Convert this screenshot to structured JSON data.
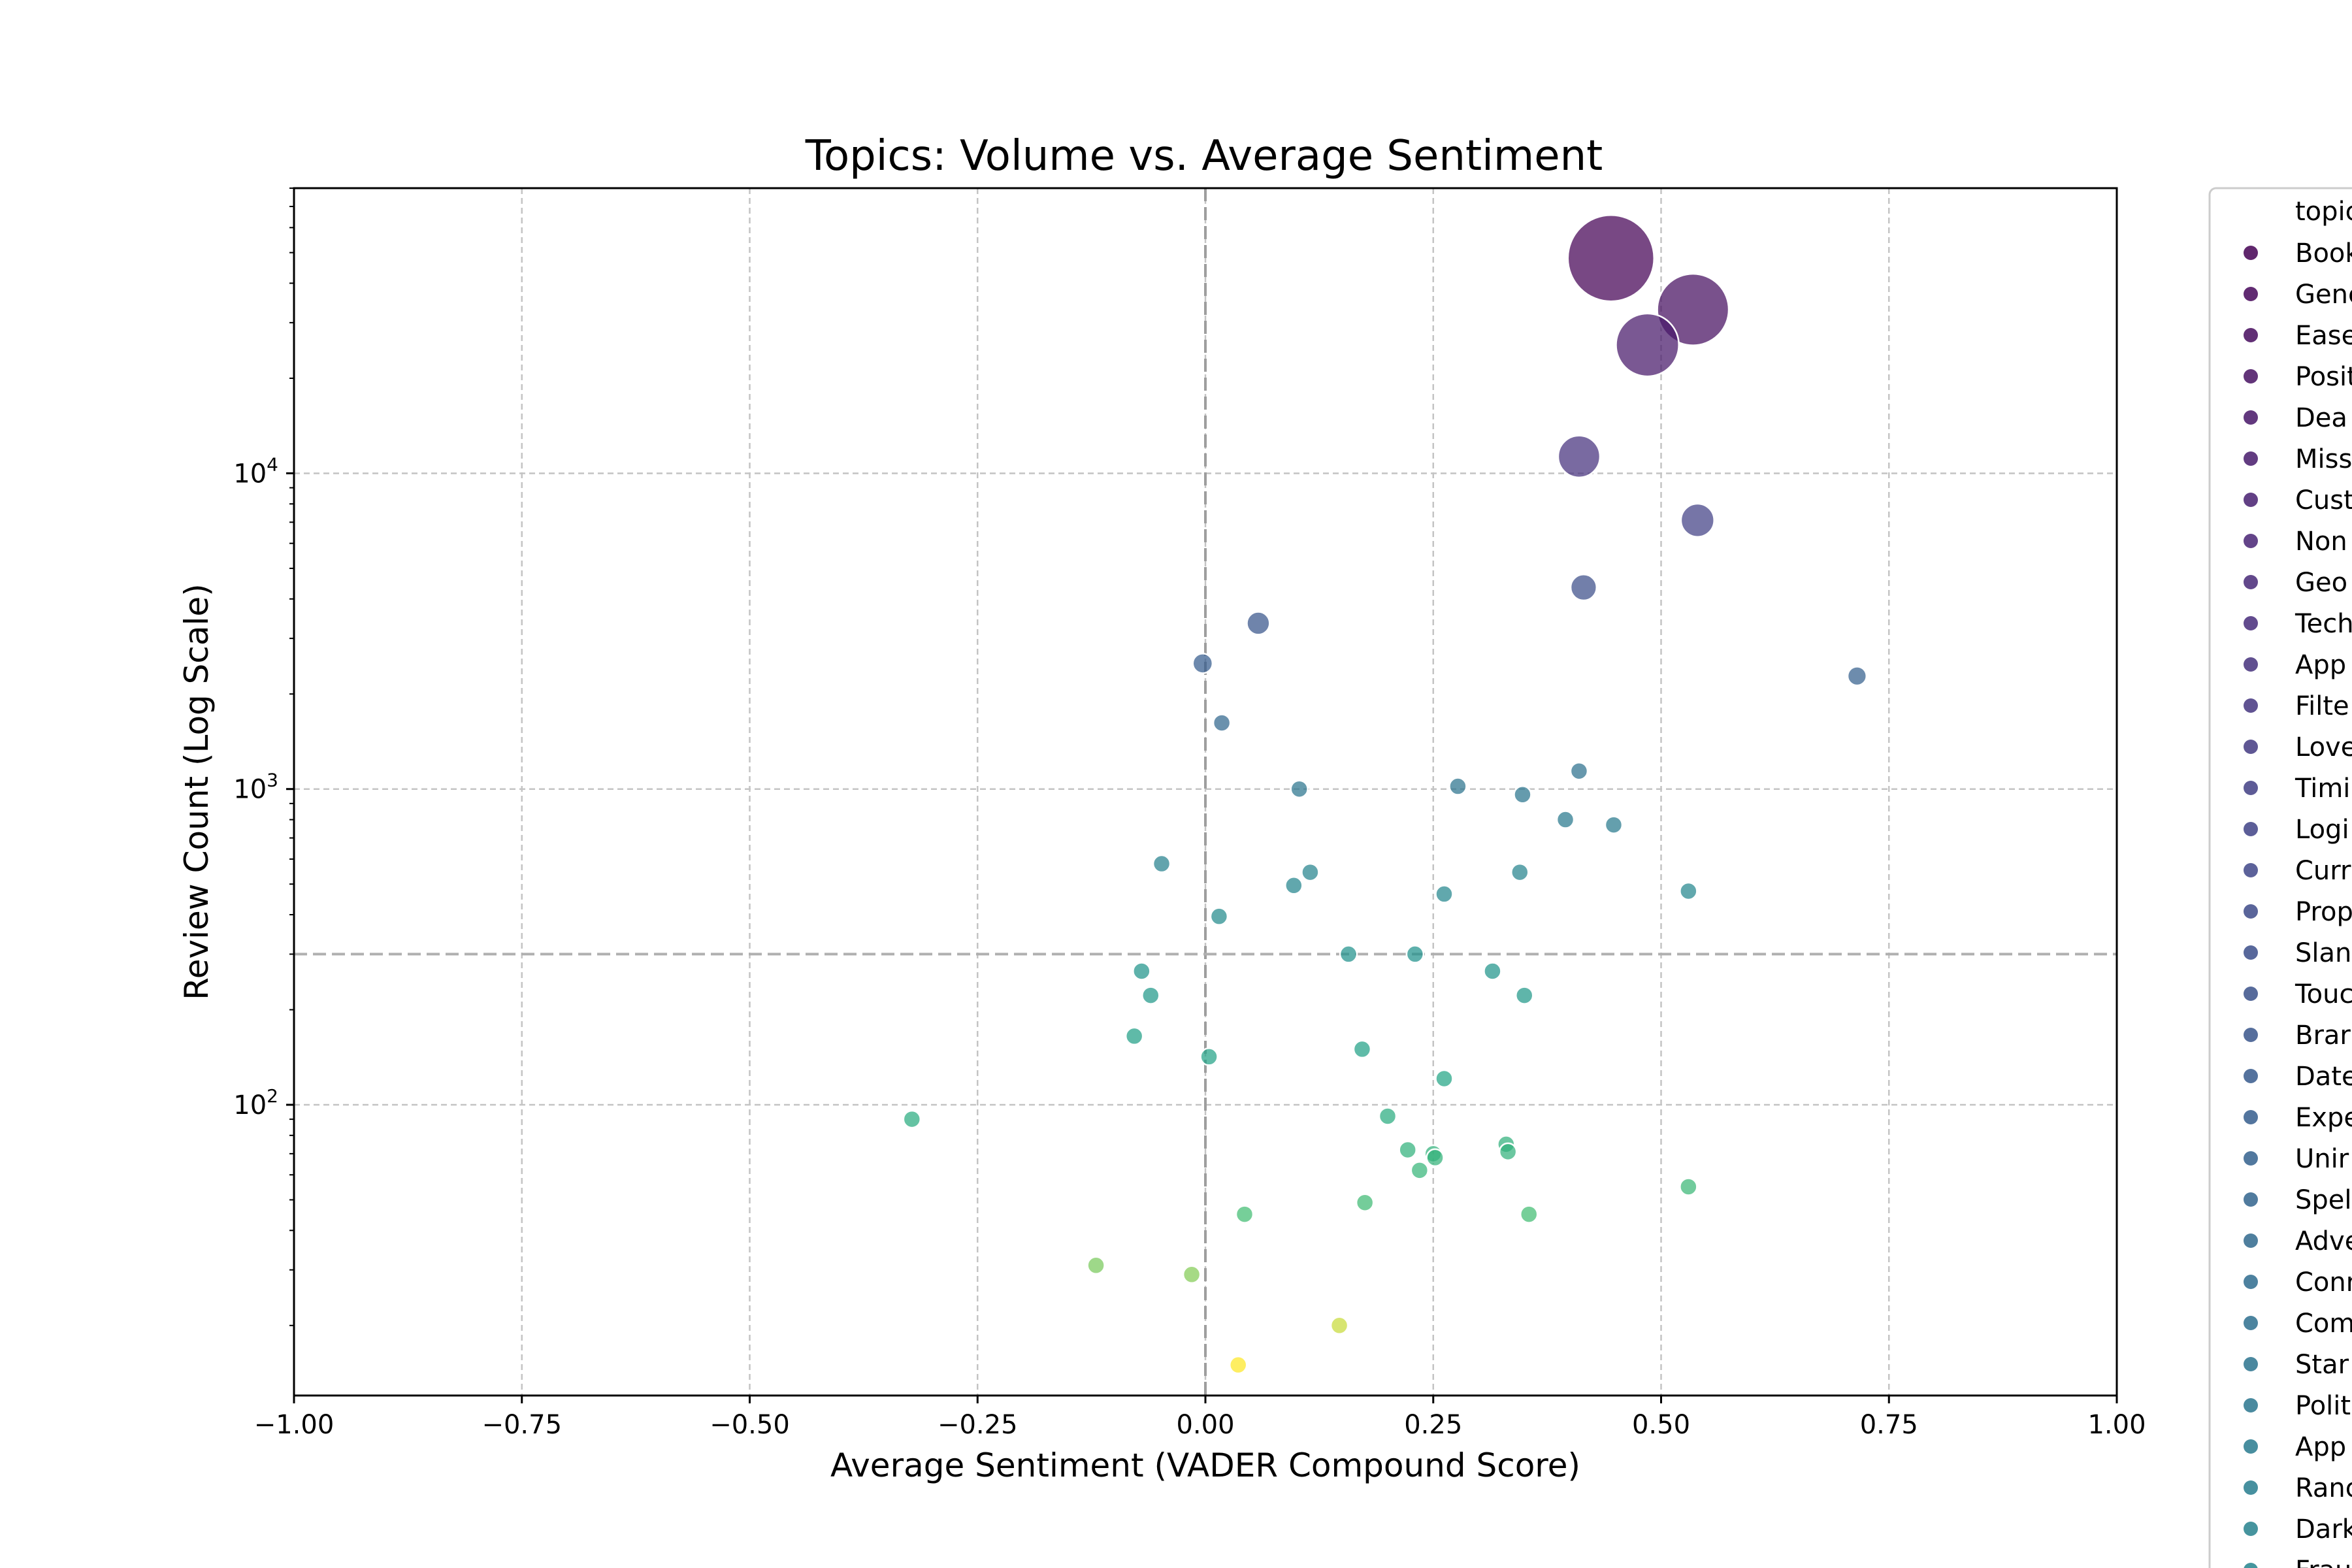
{
  "chart_data": {
    "type": "scatter",
    "title": "Topics: Volume vs. Average Sentiment",
    "xlabel": "Average Sentiment (VADER Compound Score)",
    "ylabel": "Review Count (Log Scale)",
    "xlim": [
      -1.0,
      1.0
    ],
    "ylim": [
      12,
      80000
    ],
    "yscale": "log",
    "grid": true,
    "x_ticks": [
      "−1.00",
      "−0.75",
      "−0.50",
      "−0.25",
      "0.00",
      "0.25",
      "0.50",
      "0.75",
      "1.00"
    ],
    "x_tick_values": [
      -1.0,
      -0.75,
      -0.5,
      -0.25,
      0.0,
      0.25,
      0.5,
      0.75,
      1.0
    ],
    "y_ticks": [
      {
        "base": "10",
        "exp": "2",
        "value": 100
      },
      {
        "base": "10",
        "exp": "3",
        "value": 1000
      },
      {
        "base": "10",
        "exp": "4",
        "value": 10000
      }
    ],
    "reference_lines": {
      "x": 0.0,
      "y": 300
    },
    "color_scale": "viridis",
    "legend": {
      "position": "right",
      "title": "topic",
      "entries": [
        "Book",
        "Gene",
        "Ease",
        "Posit",
        "Dea",
        "Miss",
        "Cust",
        "Non",
        "Geo",
        "Tech",
        "App",
        "Filte",
        "Love",
        "Timi",
        "Logi",
        "Curr",
        "Prop",
        "Slan",
        "Touc",
        "Brar",
        "Date",
        "Expe",
        "Unir",
        "Spel",
        "Adve",
        "Conr",
        "Com",
        "Star",
        "Polit",
        "App",
        "Ranc",
        "Dark",
        "Frau"
      ]
    },
    "points": [
      {
        "x": 0.445,
        "y": 48000
      },
      {
        "x": 0.535,
        "y": 33000
      },
      {
        "x": 0.485,
        "y": 25500
      },
      {
        "x": 0.41,
        "y": 11300
      },
      {
        "x": 0.54,
        "y": 7100
      },
      {
        "x": 0.415,
        "y": 4350
      },
      {
        "x": 0.058,
        "y": 3350
      },
      {
        "x": -0.003,
        "y": 2500
      },
      {
        "x": 0.018,
        "y": 1620
      },
      {
        "x": 0.715,
        "y": 2280
      },
      {
        "x": 0.41,
        "y": 1140
      },
      {
        "x": 0.277,
        "y": 1020
      },
      {
        "x": 0.103,
        "y": 1000
      },
      {
        "x": 0.348,
        "y": 960
      },
      {
        "x": 0.395,
        "y": 800
      },
      {
        "x": 0.448,
        "y": 770
      },
      {
        "x": -0.048,
        "y": 580
      },
      {
        "x": 0.115,
        "y": 545
      },
      {
        "x": 0.345,
        "y": 545
      },
      {
        "x": 0.097,
        "y": 495
      },
      {
        "x": 0.262,
        "y": 465
      },
      {
        "x": 0.53,
        "y": 475
      },
      {
        "x": 0.015,
        "y": 395
      },
      {
        "x": 0.157,
        "y": 300
      },
      {
        "x": 0.23,
        "y": 300
      },
      {
        "x": -0.07,
        "y": 265
      },
      {
        "x": 0.315,
        "y": 265
      },
      {
        "x": -0.06,
        "y": 222
      },
      {
        "x": 0.35,
        "y": 222
      },
      {
        "x": -0.078,
        "y": 165
      },
      {
        "x": 0.172,
        "y": 150
      },
      {
        "x": 0.004,
        "y": 142
      },
      {
        "x": 0.262,
        "y": 121
      },
      {
        "x": -0.322,
        "y": 90
      },
      {
        "x": 0.2,
        "y": 92
      },
      {
        "x": 0.222,
        "y": 72
      },
      {
        "x": 0.25,
        "y": 70
      },
      {
        "x": 0.252,
        "y": 68
      },
      {
        "x": 0.33,
        "y": 75
      },
      {
        "x": 0.332,
        "y": 71
      },
      {
        "x": 0.235,
        "y": 62
      },
      {
        "x": 0.53,
        "y": 55
      },
      {
        "x": 0.175,
        "y": 49
      },
      {
        "x": 0.043,
        "y": 45
      },
      {
        "x": 0.355,
        "y": 45
      },
      {
        "x": -0.12,
        "y": 31
      },
      {
        "x": -0.015,
        "y": 29
      },
      {
        "x": 0.147,
        "y": 20
      },
      {
        "x": 0.036,
        "y": 15
      }
    ]
  }
}
